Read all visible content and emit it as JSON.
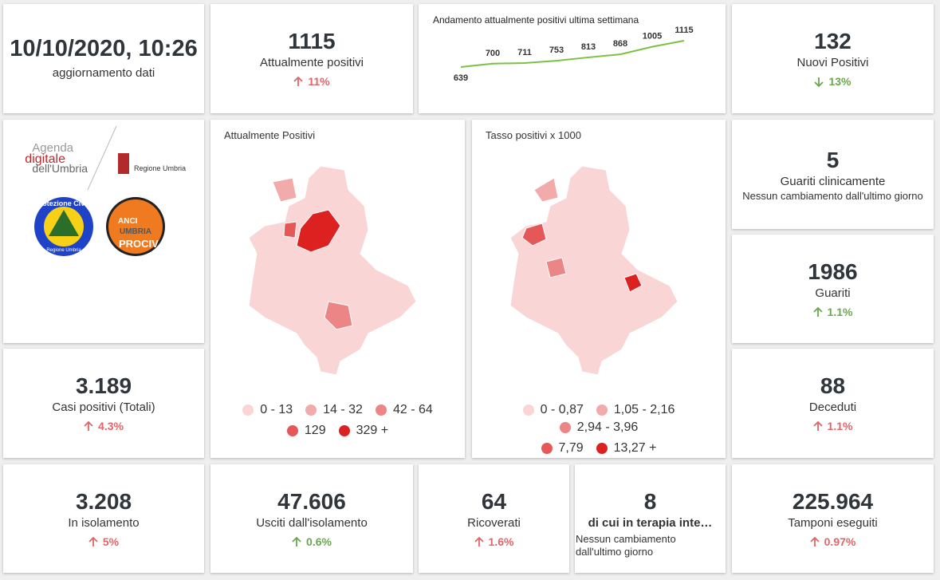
{
  "updated": {
    "value": "10/10/2020, 10:26",
    "label": "aggiornamento dati"
  },
  "kpis": {
    "attualmente_positivi": {
      "value": "1115",
      "label": "Attualmente positivi",
      "change": "11%",
      "trend": "up",
      "color": "#e06666"
    },
    "nuovi_positivi": {
      "value": "132",
      "label": "Nuovi Positivi",
      "change": "13%",
      "trend": "down",
      "color": "#6aa84f"
    },
    "guariti_clinicamente": {
      "value": "5",
      "label": "Guariti clinicamente",
      "note": "Nessun cambiamento dall'ultimo giorno"
    },
    "guariti": {
      "value": "1986",
      "label": "Guariti",
      "change": "1.1%",
      "trend": "up",
      "color": "#6aa84f"
    },
    "deceduti": {
      "value": "88",
      "label": "Deceduti",
      "change": "1.1%",
      "trend": "up",
      "color": "#e06666"
    },
    "casi_totali": {
      "value": "3.189",
      "label": "Casi positivi (Totali)",
      "change": "4.3%",
      "trend": "up",
      "color": "#e06666"
    },
    "isolamento": {
      "value": "3.208",
      "label": "In isolamento",
      "change": "5%",
      "trend": "up",
      "color": "#e06666"
    },
    "usciti": {
      "value": "47.606",
      "label": "Usciti dall'isolamento",
      "change": "0.6%",
      "trend": "up",
      "color": "#6aa84f"
    },
    "ricoverati": {
      "value": "64",
      "label": "Ricoverati",
      "change": "1.6%",
      "trend": "up",
      "color": "#e06666"
    },
    "terapia": {
      "value": "8",
      "label": "di cui in terapia inte…",
      "note": "Nessun cambiamento dall'ultimo giorno"
    },
    "tamponi": {
      "value": "225.964",
      "label": "Tamponi eseguiti",
      "change": "0.97%",
      "trend": "up",
      "color": "#e06666"
    }
  },
  "sparkline": {
    "title": "Andamento attualmente positivi ultima settimana",
    "values": [
      639,
      700,
      711,
      753,
      813,
      868,
      1005,
      1115
    ],
    "color": "#7cc242"
  },
  "logos": {
    "agenda": [
      "Agenda",
      "digitale",
      "dell'Umbria"
    ],
    "regione": "Regione Umbria",
    "protezione": "Protezione Civile",
    "protezione_sub": "Regione Umbria",
    "anci": [
      "ANCI",
      "UMBRIA",
      "PROCIV"
    ]
  },
  "maps": [
    {
      "title": "Attualmente Positivi",
      "legend": [
        {
          "label": "0 - 13",
          "color": "#f9d5d5"
        },
        {
          "label": "14 - 32",
          "color": "#f2abab"
        },
        {
          "label": "42 - 64",
          "color": "#ec8585"
        },
        {
          "label": "129",
          "color": "#e65757"
        },
        {
          "label": "329 +",
          "color": "#dd2020"
        }
      ]
    },
    {
      "title": "Tasso positivi x 1000",
      "legend": [
        {
          "label": "0 - 0,87",
          "color": "#f9d5d5"
        },
        {
          "label": "1,05 - 2,16",
          "color": "#f2abab"
        },
        {
          "label": "2,94 - 3,96",
          "color": "#ec8585"
        },
        {
          "label": "7,79",
          "color": "#e65757"
        },
        {
          "label": "13,27 +",
          "color": "#dd2020"
        }
      ]
    }
  ]
}
